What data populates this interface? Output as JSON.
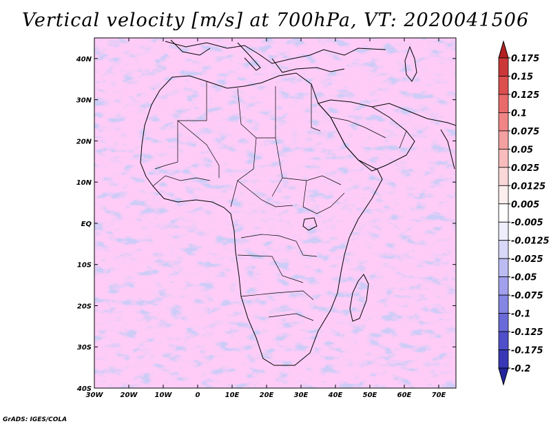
{
  "title": "Vertical velocity [m/s] at 700hPa, VT: 2020041506",
  "credit": "GrADS: IGES/COLA",
  "map": {
    "lon_range": [
      -30,
      75
    ],
    "lat_range": [
      -40,
      45
    ],
    "lon_ticks": [
      {
        "value": -30,
        "label": "30W"
      },
      {
        "value": -20,
        "label": "20W"
      },
      {
        "value": -10,
        "label": "10W"
      },
      {
        "value": 0,
        "label": "0"
      },
      {
        "value": 10,
        "label": "10E"
      },
      {
        "value": 20,
        "label": "20E"
      },
      {
        "value": 30,
        "label": "30E"
      },
      {
        "value": 40,
        "label": "40E"
      },
      {
        "value": 50,
        "label": "50E"
      },
      {
        "value": 60,
        "label": "60E"
      },
      {
        "value": 70,
        "label": "70E"
      }
    ],
    "lat_ticks": [
      {
        "value": 40,
        "label": "40N"
      },
      {
        "value": 30,
        "label": "30N"
      },
      {
        "value": 20,
        "label": "20N"
      },
      {
        "value": 10,
        "label": "10N"
      },
      {
        "value": 0,
        "label": "EQ"
      },
      {
        "value": -10,
        "label": "10S"
      },
      {
        "value": -20,
        "label": "20S"
      },
      {
        "value": -30,
        "label": "30S"
      },
      {
        "value": -40,
        "label": "40S"
      }
    ]
  },
  "colorbar": {
    "boundaries": [
      "0.175",
      "0.15",
      "0.125",
      "0.1",
      "0.075",
      "0.05",
      "0.025",
      "0.0125",
      "0.005",
      "-0.005",
      "-0.0125",
      "-0.025",
      "-0.05",
      "-0.075",
      "-0.1",
      "-0.125",
      "-0.175",
      "-0.2"
    ],
    "colors": [
      "#b22222",
      "#cc3838",
      "#dc4f4f",
      "#e96a6a",
      "#f08585",
      "#f4a0a0",
      "#f8bcbc",
      "#fbd8d8",
      "#fdeeee",
      "#ffffff",
      "#eeeefd",
      "#d8d8f8",
      "#bcbcf3",
      "#a0a0ec",
      "#8585e4",
      "#6a6ad8",
      "#4f4fca",
      "#3838b6",
      "#24249e"
    ]
  }
}
